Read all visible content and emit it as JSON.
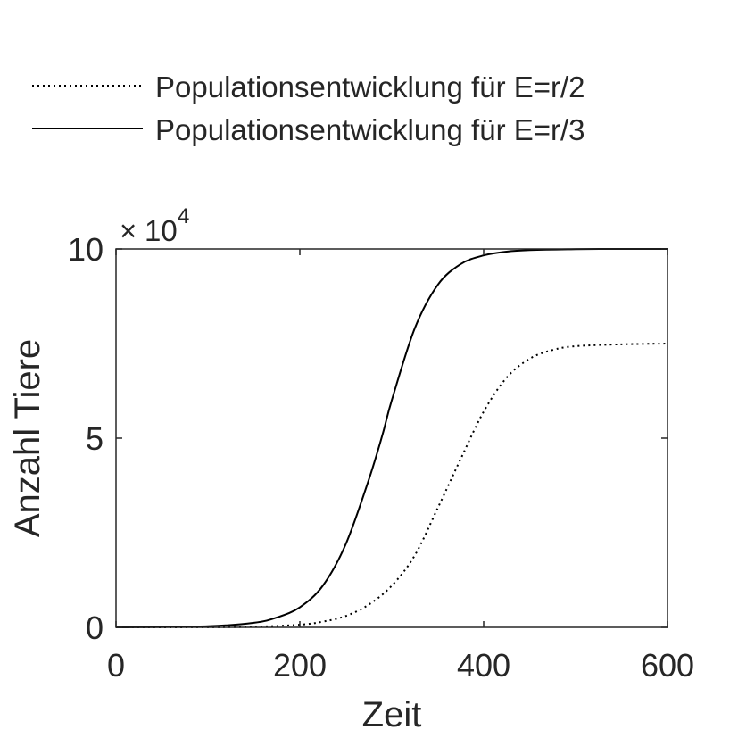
{
  "chart_data": {
    "type": "line",
    "title": "",
    "xlabel": "Zeit",
    "ylabel": "Anzahl Tiere",
    "xlim": [
      0,
      600
    ],
    "ylim": [
      0,
      100000
    ],
    "x_ticks": [
      0,
      200,
      400,
      600
    ],
    "x_tick_labels": [
      "0",
      "200",
      "400",
      "600"
    ],
    "y_ticks": [
      0,
      50000,
      100000
    ],
    "y_tick_labels": [
      "0",
      "5",
      "10"
    ],
    "y_exponent": {
      "base": "10",
      "power": "4",
      "prefix": "×"
    },
    "grid": false,
    "box": true,
    "legend_position": "top-outside",
    "series": [
      {
        "name": "Populationsentwicklung für E=r/2",
        "line_style": "dotted",
        "color": "#000000",
        "x": [
          0,
          100,
          150,
          200,
          225,
          250,
          275,
          300,
          325,
          350,
          375,
          400,
          425,
          450,
          475,
          500,
          550,
          600
        ],
        "y": [
          0,
          30,
          150,
          700,
          1500,
          3000,
          6000,
          11000,
          19000,
          31500,
          44500,
          57000,
          66000,
          71000,
          73300,
          74300,
          74800,
          75000
        ]
      },
      {
        "name": "Populationsentwicklung für E=r/3",
        "line_style": "solid",
        "color": "#000000",
        "x": [
          0,
          100,
          150,
          175,
          200,
          225,
          250,
          275,
          290,
          300,
          325,
          350,
          375,
          400,
          425,
          450,
          500,
          550,
          600
        ],
        "y": [
          0,
          300,
          1200,
          2600,
          5300,
          11000,
          22000,
          39000,
          51000,
          60000,
          79000,
          90500,
          96000,
          98300,
          99300,
          99700,
          99950,
          100000,
          100000
        ]
      }
    ]
  }
}
